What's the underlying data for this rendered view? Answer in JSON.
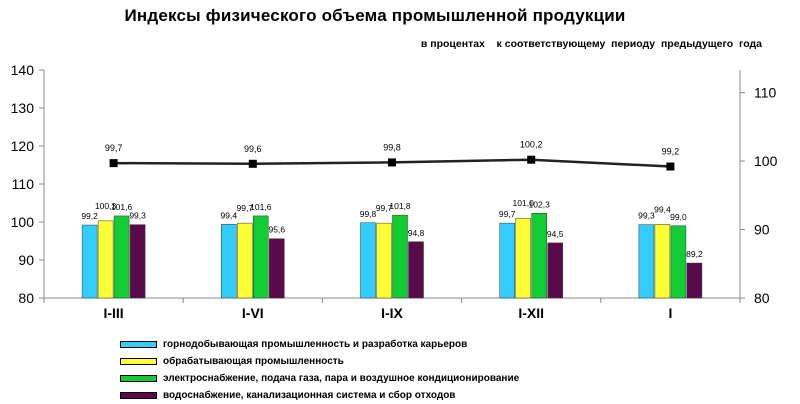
{
  "title": "Индексы физического объема промышленной продукции",
  "subtitle": "в процентах    к соответствующему  периоду  предыдущего  года",
  "chart_data": {
    "type": "bar",
    "categories": [
      "I-III",
      "I-VI",
      "I-IX",
      "I-XII",
      "I"
    ],
    "series": [
      {
        "name": "горнодобывающая промышленность и разработка карьеров",
        "color": "#33ccff",
        "values": [
          99.2,
          99.4,
          99.8,
          99.7,
          99.3
        ],
        "labels": [
          "99,2",
          "99,4",
          "99,8",
          "99,7",
          "99,3"
        ]
      },
      {
        "name": "обрабатывающая промышленность",
        "color": "#ffff33",
        "values": [
          100.3,
          99.7,
          99.7,
          101.0,
          99.4
        ],
        "labels": [
          "100,3",
          "99,7",
          "99,7",
          "101,0",
          "99,4"
        ]
      },
      {
        "name": "электроснабжение, подача газа, пара и воздушное кондиционирование",
        "color": "#11cc33",
        "values": [
          101.6,
          101.6,
          101.8,
          102.3,
          99.0
        ],
        "labels": [
          "101,6",
          "101,6",
          "101,8",
          "102,3",
          "99,0"
        ]
      },
      {
        "name": "водоснабжение, канализационная система и сбор отходов",
        "color": "#5a0a4a",
        "values": [
          99.3,
          95.6,
          94.8,
          94.5,
          89.2
        ],
        "labels": [
          "99,3",
          "95,6",
          "94,8",
          "94,5",
          "89,2"
        ]
      }
    ],
    "line": {
      "axis": "right",
      "color": "#222222",
      "values": [
        99.7,
        99.6,
        99.8,
        100.2,
        99.2
      ],
      "labels": [
        "99,7",
        "99,6",
        "99,8",
        "100,2",
        "99,2"
      ]
    },
    "ylim": [
      80,
      140
    ],
    "yticks": [
      "80",
      "90",
      "100",
      "110",
      "120",
      "130",
      "140"
    ],
    "y2lim": [
      80,
      113.3
    ],
    "y2ticks": [
      "80",
      "90",
      "100",
      "110"
    ],
    "grid": false,
    "legend_position": "bottom"
  }
}
